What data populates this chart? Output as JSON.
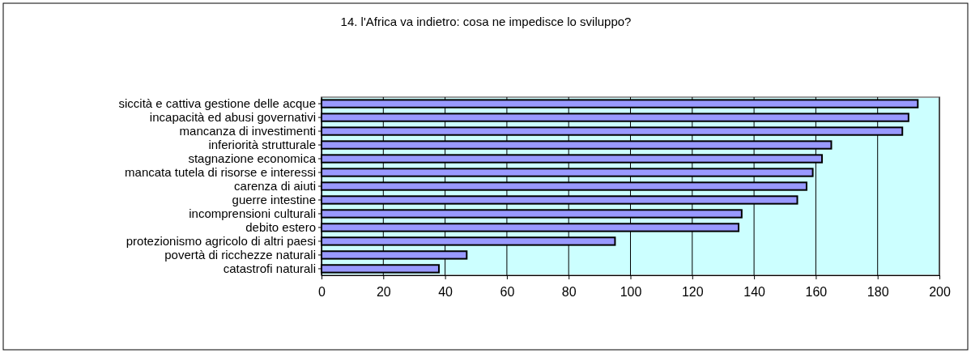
{
  "chart_data": {
    "type": "bar",
    "orientation": "horizontal",
    "title": "14. l'Africa va indietro: cosa ne impedisce lo sviluppo?",
    "categories": [
      "siccità e cattiva gestione delle acque",
      "incapacità ed abusi governativi",
      "mancanza di investimenti",
      "inferiorità strutturale",
      "stagnazione economica",
      "mancata tutela di risorse e interessi",
      "carenza di aiuti",
      "guerre intestine",
      "incomprensioni culturali",
      "debito estero",
      "protezionismo agricolo di altri paesi",
      "povertà di ricchezze naturali",
      "catastrofi naturali"
    ],
    "values": [
      193,
      190,
      188,
      165,
      162,
      159,
      157,
      154,
      136,
      135,
      95,
      47,
      38
    ],
    "color": "#9999ff",
    "xlim": [
      0,
      200
    ],
    "xticks": [
      0,
      20,
      40,
      60,
      80,
      100,
      120,
      140,
      160,
      180,
      200
    ],
    "grid": "x"
  }
}
